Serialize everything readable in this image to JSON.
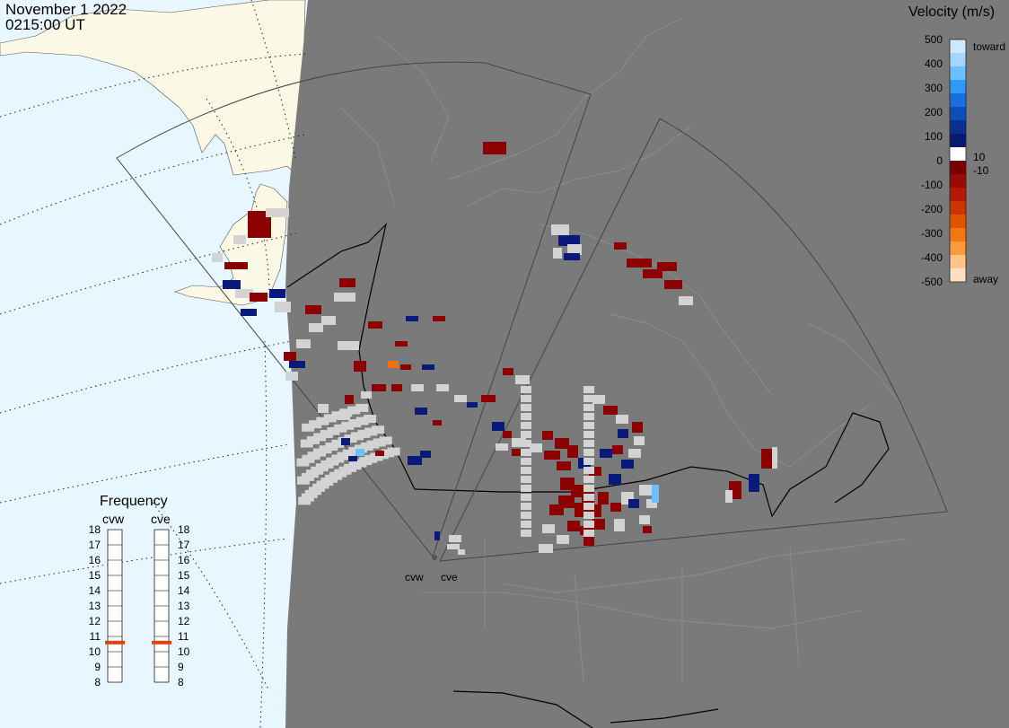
{
  "header": {
    "date": "November 1 2022",
    "time": "0215:00 UT"
  },
  "velocity_scale": {
    "title": "Velocity (m/s)",
    "ticks": [
      "500",
      "400",
      "300",
      "200",
      "100",
      "10",
      "0",
      "-10",
      "-100",
      "-200",
      "-300",
      "-400",
      "-500"
    ],
    "toward_label": "toward",
    "away_label": "away",
    "colors": [
      "#cde9ff",
      "#a3d7ff",
      "#6cc0ff",
      "#2f9af5",
      "#1a6fe0",
      "#0d4fb8",
      "#08308f",
      "#0a1a6e",
      "#ffffff",
      "#7a0000",
      "#9a0a00",
      "#b51a00",
      "#cc3300",
      "#e05500",
      "#f07a10",
      "#fb9a3c",
      "#ffc48a",
      "#ffdfc0"
    ]
  },
  "frequency": {
    "title": "Frequency",
    "radars": [
      {
        "name": "cvw",
        "value_mhz": 10.6
      },
      {
        "name": "cve",
        "value_mhz": 10.6
      }
    ],
    "ticks": [
      "18",
      "17",
      "16",
      "15",
      "14",
      "13",
      "12",
      "11",
      "10",
      "9",
      "8"
    ],
    "marker_color": "#dd4411"
  },
  "radars": [
    {
      "name": "cvw"
    },
    {
      "name": "cve"
    }
  ],
  "map_colors": {
    "ocean": "#e8f6ff",
    "land": "#fbf8e6",
    "night": "#7a7a7a",
    "ground_scatter": "#d3d3d3"
  }
}
